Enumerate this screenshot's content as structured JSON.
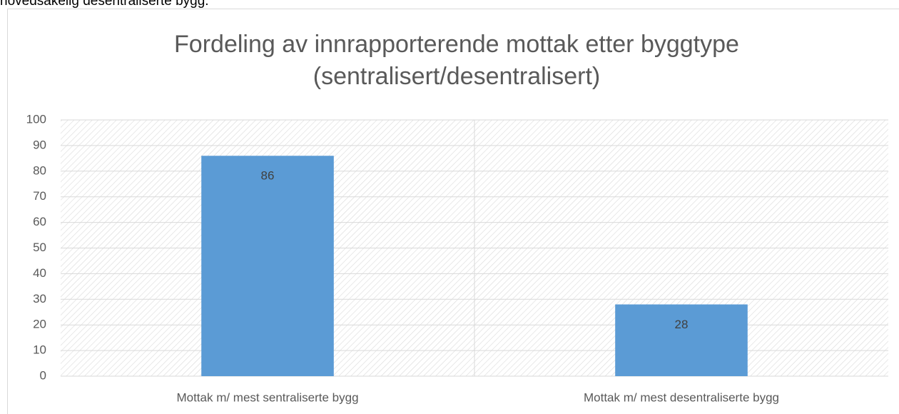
{
  "page_text": "hovedsakelig desentraliserte bygg.",
  "chart_data": {
    "type": "bar",
    "title": [
      "Fordeling av innrapporterende mottak etter byggtype",
      "(sentralisert/desentralisert)"
    ],
    "categories": [
      "Mottak m/ mest sentraliserte bygg",
      "Mottak m/ mest desentraliserte bygg"
    ],
    "values": [
      86,
      28
    ],
    "color": "#5b9bd5",
    "ylim": [
      0,
      100
    ],
    "yticks": [
      0,
      10,
      20,
      30,
      40,
      50,
      60,
      70,
      80,
      90,
      100
    ],
    "grid": true
  }
}
